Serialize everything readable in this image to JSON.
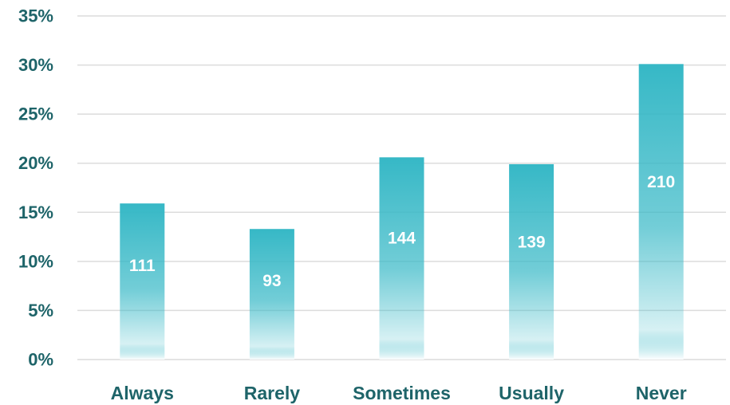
{
  "chart_data": {
    "type": "bar",
    "categories": [
      "Always",
      "Rarely",
      "Sometimes",
      "Usually",
      "Never"
    ],
    "series": [
      {
        "values": [
          15.9,
          13.3,
          20.6,
          19.9,
          30.1
        ],
        "data_labels": [
          "111",
          "93",
          "144",
          "139",
          "210"
        ]
      }
    ],
    "title": "",
    "xlabel": "",
    "ylabel": "",
    "ylim": [
      0,
      35
    ],
    "yticks": [
      0,
      5,
      10,
      15,
      20,
      25,
      30,
      35
    ],
    "ytick_labels": [
      "0%",
      "5%",
      "10%",
      "15%",
      "20%",
      "25%",
      "30%",
      "35%"
    ],
    "grid": true,
    "legend": "none"
  },
  "colors": {
    "bar_top": "#36b8c6",
    "bar_bottom": "#ffffff",
    "text": "#1e6469",
    "grid": "#dcdcdc",
    "data_label": "#ffffff"
  }
}
